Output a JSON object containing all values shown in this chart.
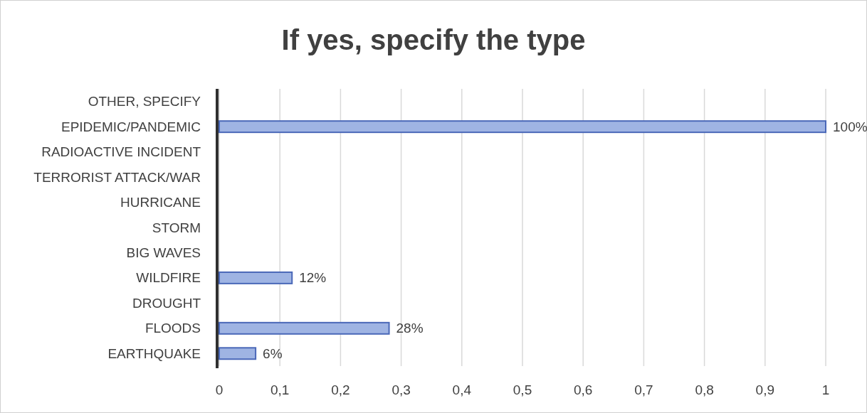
{
  "chart_data": {
    "type": "bar",
    "orientation": "horizontal",
    "title": "If yes, specify the type",
    "categories": [
      "OTHER, SPECIFY",
      "EPIDEMIC/PANDEMIC",
      "RADIOACTIVE INCIDENT",
      "TERRORIST ATTACK/WAR",
      "HURRICANE",
      "STORM",
      "BIG WAVES",
      "WILDFIRE",
      "DROUGHT",
      "FLOODS",
      "EARTHQUAKE"
    ],
    "values": [
      0,
      1,
      0,
      0,
      0,
      0,
      0,
      0.12,
      0,
      0.28,
      0.06
    ],
    "value_labels": [
      null,
      "100%",
      null,
      null,
      null,
      null,
      null,
      "12%",
      null,
      "28%",
      "6%"
    ],
    "color": "#9fb4e3",
    "xlim": [
      0,
      1
    ],
    "xticks": [
      0,
      {
        "value": 0.1,
        "label": "0,1"
      },
      {
        "value": 0.2,
        "label": "0,2"
      },
      {
        "value": 0.3,
        "label": "0,3"
      },
      {
        "value": 0.4,
        "label": "0,4"
      },
      {
        "value": 0.5,
        "label": "0,5"
      },
      {
        "value": 0.6,
        "label": "0,6"
      },
      {
        "value": 0.7,
        "label": "0,7"
      },
      {
        "value": 0.8,
        "label": "0,8"
      },
      {
        "value": 0.9,
        "label": "0,9"
      },
      1
    ],
    "grid": "x"
  }
}
